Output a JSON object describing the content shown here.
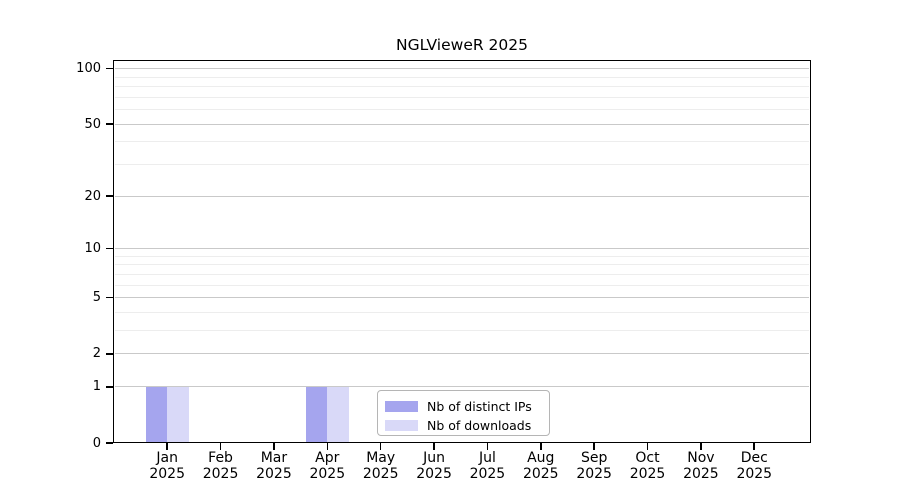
{
  "chart_data": {
    "type": "bar",
    "title": "NGLVieweR 2025",
    "categories": [
      {
        "month": "Jan",
        "year": "2025"
      },
      {
        "month": "Feb",
        "year": "2025"
      },
      {
        "month": "Mar",
        "year": "2025"
      },
      {
        "month": "Apr",
        "year": "2025"
      },
      {
        "month": "May",
        "year": "2025"
      },
      {
        "month": "Jun",
        "year": "2025"
      },
      {
        "month": "Jul",
        "year": "2025"
      },
      {
        "month": "Aug",
        "year": "2025"
      },
      {
        "month": "Sep",
        "year": "2025"
      },
      {
        "month": "Oct",
        "year": "2025"
      },
      {
        "month": "Nov",
        "year": "2025"
      },
      {
        "month": "Dec",
        "year": "2025"
      }
    ],
    "series": [
      {
        "name": "Nb of distinct IPs",
        "color": "#a5a5ee",
        "values": [
          1,
          0,
          0,
          1,
          0,
          0,
          0,
          0,
          0,
          0,
          0,
          0
        ]
      },
      {
        "name": "Nb of downloads",
        "color": "#d9d9f8",
        "values": [
          1,
          0,
          0,
          1,
          0,
          0,
          0,
          0,
          0,
          0,
          0,
          0
        ]
      }
    ],
    "y_axis": {
      "scale": "log1p",
      "min": 0,
      "max": 112,
      "tick_labels": [
        0,
        1,
        2,
        5,
        10,
        20,
        50,
        100
      ],
      "minor_gridlines": [
        3,
        4,
        6,
        7,
        8,
        9,
        30,
        40,
        60,
        70,
        80,
        90
      ]
    },
    "legend": {
      "position": "lower center"
    },
    "colors": {
      "major_grid": "#c9c9c9",
      "minor_grid": "#ededed",
      "axis": "#000000",
      "legend_border": "#b5b5b5",
      "background": "#ffffff"
    }
  }
}
